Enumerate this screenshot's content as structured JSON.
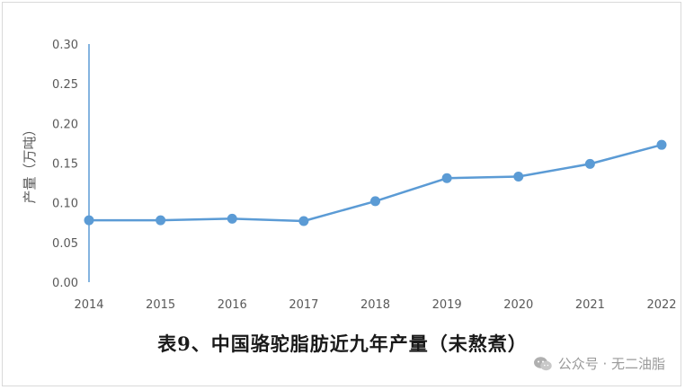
{
  "chart_data": {
    "type": "line",
    "title": "表9、中国骆驼脂肪近九年产量（未熬煮）",
    "xlabel": "",
    "ylabel": "产量（万吨）",
    "x": [
      "2014",
      "2015",
      "2016",
      "2017",
      "2018",
      "2019",
      "2020",
      "2021",
      "2022"
    ],
    "series": [
      {
        "values": [
          0.078,
          0.078,
          0.08,
          0.077,
          0.102,
          0.131,
          0.133,
          0.149,
          0.173
        ]
      }
    ],
    "ylim": [
      0,
      0.3
    ],
    "yticks": [
      "0.00",
      "0.05",
      "0.10",
      "0.15",
      "0.20",
      "0.25",
      "0.30"
    ],
    "grid": false,
    "legend": "none",
    "line_color": "#5b9bd5",
    "axis_color": "#5b9bd5"
  },
  "watermark": {
    "text": "公众号 · 无二油脂",
    "icon": "wechat-icon"
  }
}
